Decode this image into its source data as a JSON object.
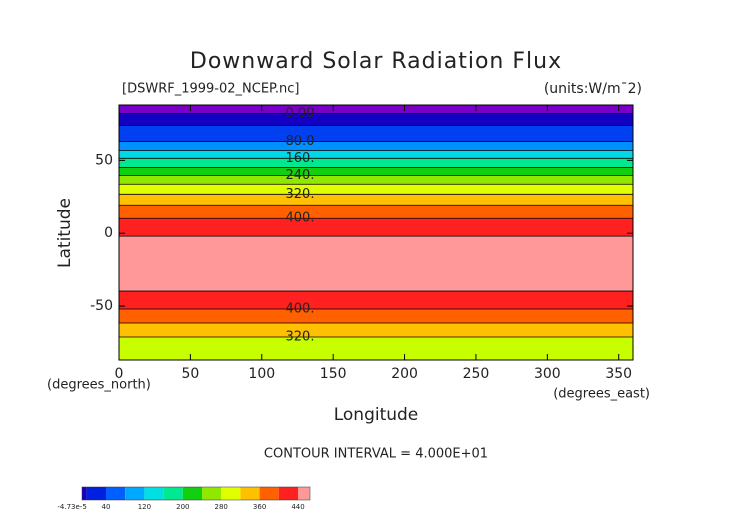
{
  "chart_data": {
    "type": "contour",
    "title": "Downward Solar Radiation Flux",
    "source": "[DSWRF_1999-02_NCEP.nc]",
    "units": "(units:W/m¯2)",
    "x_label": "Longitude",
    "y_label": "Latitude",
    "x_unit": "(degrees_east)",
    "y_unit": "(degrees_north)",
    "note": "CONTOUR INTERVAL = 4.000E+01",
    "xlim": [
      0,
      360
    ],
    "xticks": [
      0,
      50,
      100,
      150,
      200,
      250,
      300,
      350
    ],
    "ylim": [
      -87,
      88
    ],
    "yticks": [
      -50,
      0,
      50
    ],
    "contours": {
      "levels": [
        0,
        40,
        80,
        120,
        160,
        200,
        240,
        280,
        320,
        360,
        400,
        440,
        440,
        400,
        360,
        320
      ],
      "lat": [
        82.2,
        74,
        63,
        56.8,
        51.4,
        45.2,
        39.7,
        33.6,
        26.7,
        19.2,
        10.3,
        -2,
        -39.7,
        -52,
        -61.6,
        -71.2
      ],
      "value_labels": [
        "0.00",
        null,
        "80.0",
        null,
        "160.",
        null,
        "240.",
        null,
        "320.",
        null,
        "400.",
        null,
        null,
        "400.",
        null,
        "320."
      ]
    },
    "band_colors": [
      "#7a00c8",
      "#1400c0",
      "#0040f0",
      "#0090ff",
      "#00d8e8",
      "#00e890",
      "#10d010",
      "#90e800",
      "#e0ff00",
      "#ffc000",
      "#ff6000",
      "#ff2020",
      "#ff9999",
      "#ff2020",
      "#ff6000",
      "#ffc000",
      "#c8ff00"
    ],
    "colorbar": {
      "lim": [
        -10,
        465
      ],
      "levels": [
        0,
        40,
        80,
        120,
        160,
        200,
        240,
        280,
        320,
        360,
        400,
        440
      ],
      "colors": [
        "#1400c0",
        "#0020e0",
        "#0060ff",
        "#00a8ff",
        "#00e0e0",
        "#00e890",
        "#10d010",
        "#90e800",
        "#e0ff00",
        "#ffc000",
        "#ff6000",
        "#ff2020",
        "#ff9999"
      ],
      "ticks": [
        {
          "value": -4.73e-05,
          "label": "-4.73e-5"
        },
        40,
        120,
        200,
        280,
        360,
        440
      ]
    }
  }
}
